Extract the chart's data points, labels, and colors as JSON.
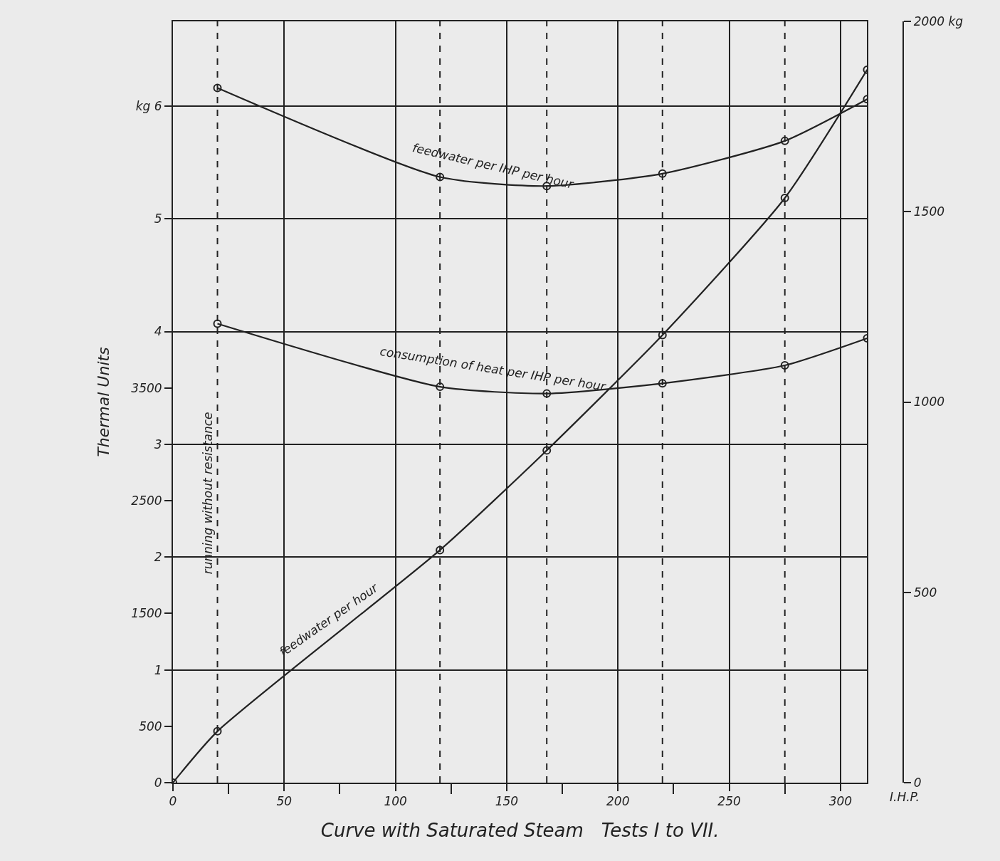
{
  "chart_data": {
    "type": "line",
    "xlabel": "Curve with Saturated Steam   Tests I to VII.",
    "ylabel": "Thermal Units",
    "xlim": [
      0,
      312
    ],
    "xticks": [
      0,
      {
        "value": 25,
        "label": null
      },
      50,
      {
        "value": 75,
        "label": null
      },
      100,
      {
        "value": 125,
        "label": null
      },
      150,
      {
        "value": 175,
        "label": null
      },
      200,
      {
        "value": 225,
        "label": null
      },
      250,
      {
        "value": 275,
        "label": null
      },
      300
    ],
    "ylim": [
      0,
      6.75
    ],
    "yticks": [
      0,
      1,
      2,
      3,
      4,
      5,
      {
        "value": 6,
        "label": "kg 6"
      }
    ],
    "y3lim": [
      0,
      6750
    ],
    "y3ticks": [
      500,
      1500,
      2500,
      3500
    ],
    "y2lim": [
      0,
      2000
    ],
    "y2ticks": [
      0,
      500,
      1000,
      1500,
      {
        "value": 2000,
        "label": "2000 kg"
      }
    ],
    "series": [
      {
        "name": "feedwater per IHP per hour",
        "color": "#222222",
        "axis": "y",
        "x": [
          20,
          120,
          168,
          220,
          275,
          312
        ],
        "values": [
          6.16,
          5.37,
          5.29,
          5.4,
          5.69,
          6.06
        ]
      },
      {
        "name": "consumption of heat per IHP per hour",
        "color": "#222222",
        "axis": "y3",
        "x": [
          20,
          120,
          168,
          220,
          275,
          312
        ],
        "values": [
          4070,
          3510,
          3450,
          3540,
          3700,
          3940
        ]
      },
      {
        "name": "feedwater per hour",
        "color": "#222222",
        "axis": "y2",
        "x": [
          0,
          20,
          120,
          168,
          220,
          275,
          312
        ],
        "values": [
          0,
          135,
          611,
          873,
          1176,
          1536,
          1873
        ]
      }
    ],
    "ref_lines": [
      {
        "axis": "x",
        "value": 20,
        "label": "running without resistance",
        "line_style": "dashed"
      },
      {
        "axis": "x",
        "value": 120,
        "line_style": "dashed"
      },
      {
        "axis": "x",
        "value": 168,
        "line_style": "dashed"
      },
      {
        "axis": "x",
        "value": 220,
        "line_style": "dashed"
      },
      {
        "axis": "x",
        "value": 275,
        "line_style": "dashed"
      }
    ],
    "annotations": [
      "I.H.P."
    ],
    "grid": true,
    "legend": false,
    "marker": "circle",
    "line_style": "solid"
  }
}
